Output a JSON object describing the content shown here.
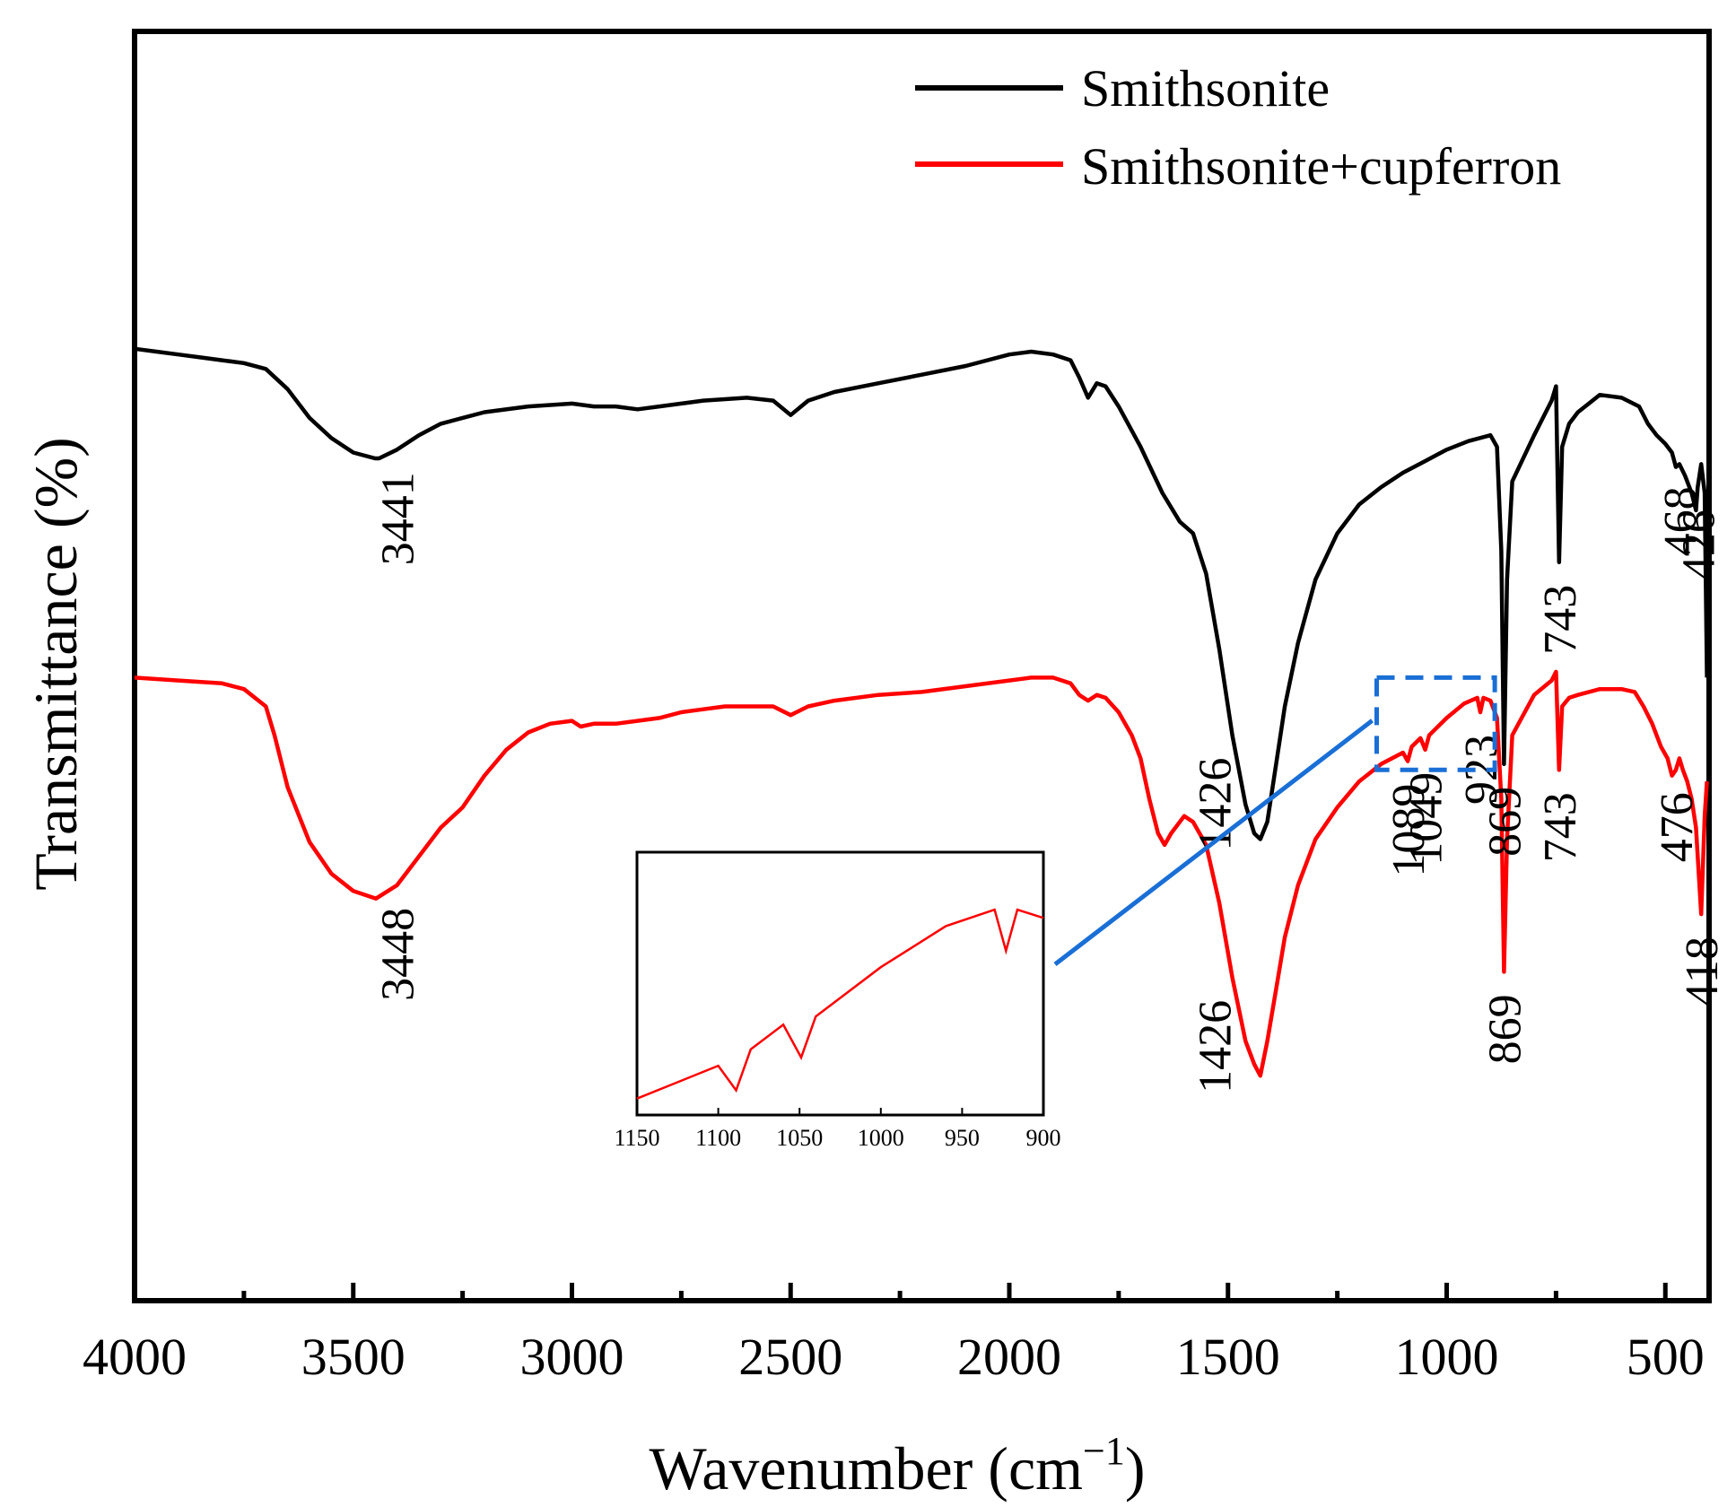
{
  "chart_data": {
    "type": "line",
    "title": "",
    "xlabel": "Wavenumber (cm",
    "xlabel_sup": "−1",
    "xlabel_close": ")",
    "ylabel": "Transmittance (%)",
    "xlim": [
      4000,
      400
    ],
    "x_reversed": true,
    "y_ticks_shown": false,
    "grid": false,
    "legend_position": "top-right",
    "x_ticks": [
      "4000",
      "3500",
      "3000",
      "2500",
      "2000",
      "1500",
      "1000",
      "500"
    ],
    "x_tick_values": [
      4000,
      3500,
      3000,
      2500,
      2000,
      1500,
      1000,
      500
    ],
    "colors": {
      "smithsonite": "#000000",
      "cupferron": "#ff0000",
      "zoom": "#1a6fd6"
    },
    "series": [
      {
        "name": "Smithsonite",
        "color": "#000000",
        "points": [
          [
            4000,
            95
          ],
          [
            3950,
            94.5
          ],
          [
            3900,
            94
          ],
          [
            3850,
            93.5
          ],
          [
            3800,
            93
          ],
          [
            3750,
            92.5
          ],
          [
            3700,
            91.5
          ],
          [
            3650,
            88
          ],
          [
            3600,
            83
          ],
          [
            3550,
            79.5
          ],
          [
            3500,
            77
          ],
          [
            3450,
            76
          ],
          [
            3441,
            76
          ],
          [
            3400,
            77.5
          ],
          [
            3350,
            80
          ],
          [
            3300,
            82
          ],
          [
            3250,
            83
          ],
          [
            3200,
            84
          ],
          [
            3100,
            85
          ],
          [
            3000,
            85.5
          ],
          [
            2950,
            85
          ],
          [
            2900,
            85
          ],
          [
            2850,
            84.5
          ],
          [
            2800,
            85
          ],
          [
            2750,
            85.5
          ],
          [
            2700,
            86
          ],
          [
            2600,
            86.5
          ],
          [
            2540,
            86
          ],
          [
            2500,
            83.5
          ],
          [
            2460,
            86
          ],
          [
            2400,
            87.5
          ],
          [
            2300,
            89
          ],
          [
            2200,
            90.5
          ],
          [
            2100,
            92
          ],
          [
            2000,
            94
          ],
          [
            1950,
            94.5
          ],
          [
            1900,
            94
          ],
          [
            1860,
            93
          ],
          [
            1840,
            90
          ],
          [
            1820,
            86.5
          ],
          [
            1800,
            89
          ],
          [
            1780,
            88.5
          ],
          [
            1750,
            85
          ],
          [
            1700,
            78
          ],
          [
            1650,
            70
          ],
          [
            1610,
            65
          ],
          [
            1580,
            63
          ],
          [
            1550,
            56
          ],
          [
            1520,
            43
          ],
          [
            1490,
            28
          ],
          [
            1460,
            16
          ],
          [
            1440,
            11
          ],
          [
            1426,
            10
          ],
          [
            1410,
            13
          ],
          [
            1390,
            23
          ],
          [
            1370,
            33
          ],
          [
            1340,
            44
          ],
          [
            1300,
            55
          ],
          [
            1250,
            63
          ],
          [
            1200,
            68
          ],
          [
            1150,
            71
          ],
          [
            1100,
            73.5
          ],
          [
            1050,
            75.5
          ],
          [
            1000,
            77.5
          ],
          [
            950,
            79
          ],
          [
            900,
            80
          ],
          [
            885,
            78
          ],
          [
            875,
            60
          ],
          [
            869,
            23
          ],
          [
            862,
            55
          ],
          [
            850,
            72
          ],
          [
            800,
            80
          ],
          [
            760,
            86
          ],
          [
            750,
            88.5
          ],
          [
            743,
            58
          ],
          [
            736,
            78
          ],
          [
            720,
            82
          ],
          [
            700,
            84
          ],
          [
            650,
            87
          ],
          [
            600,
            86.5
          ],
          [
            560,
            85
          ],
          [
            540,
            82
          ],
          [
            520,
            80
          ],
          [
            500,
            78.5
          ],
          [
            485,
            77
          ],
          [
            476,
            74.5
          ],
          [
            468,
            75
          ],
          [
            455,
            73
          ],
          [
            440,
            70
          ],
          [
            430,
            67
          ],
          [
            426,
            71
          ],
          [
            418,
            75
          ],
          [
            410,
            70
          ],
          [
            405,
            38
          ]
        ]
      },
      {
        "name": "Smithsonite+cupferron",
        "color": "#ff0000",
        "points": [
          [
            4000,
            38
          ],
          [
            3900,
            37.5
          ],
          [
            3800,
            37
          ],
          [
            3750,
            36
          ],
          [
            3700,
            33
          ],
          [
            3680,
            28
          ],
          [
            3650,
            19
          ],
          [
            3600,
            9.5
          ],
          [
            3550,
            4
          ],
          [
            3500,
            1
          ],
          [
            3448,
            -0.3
          ],
          [
            3400,
            2
          ],
          [
            3350,
            7
          ],
          [
            3300,
            12
          ],
          [
            3250,
            15.5
          ],
          [
            3200,
            21
          ],
          [
            3150,
            25.5
          ],
          [
            3100,
            28.5
          ],
          [
            3050,
            30
          ],
          [
            3000,
            30.5
          ],
          [
            2980,
            29.5
          ],
          [
            2950,
            30
          ],
          [
            2900,
            30
          ],
          [
            2850,
            30.5
          ],
          [
            2800,
            31
          ],
          [
            2750,
            32
          ],
          [
            2700,
            32.5
          ],
          [
            2650,
            33
          ],
          [
            2600,
            33
          ],
          [
            2540,
            33
          ],
          [
            2500,
            31.5
          ],
          [
            2460,
            33
          ],
          [
            2400,
            34
          ],
          [
            2300,
            35
          ],
          [
            2200,
            35.5
          ],
          [
            2100,
            36.5
          ],
          [
            2000,
            37.5
          ],
          [
            1950,
            38
          ],
          [
            1900,
            38
          ],
          [
            1860,
            37
          ],
          [
            1840,
            35
          ],
          [
            1820,
            34
          ],
          [
            1800,
            35
          ],
          [
            1780,
            34.5
          ],
          [
            1750,
            32
          ],
          [
            1720,
            28
          ],
          [
            1700,
            24
          ],
          [
            1680,
            17
          ],
          [
            1660,
            11
          ],
          [
            1645,
            9
          ],
          [
            1630,
            11
          ],
          [
            1600,
            14
          ],
          [
            1580,
            13
          ],
          [
            1550,
            9
          ],
          [
            1520,
            -1
          ],
          [
            1490,
            -14
          ],
          [
            1460,
            -25
          ],
          [
            1440,
            -29
          ],
          [
            1426,
            -31
          ],
          [
            1410,
            -25
          ],
          [
            1390,
            -16
          ],
          [
            1370,
            -7
          ],
          [
            1340,
            2
          ],
          [
            1300,
            10
          ],
          [
            1250,
            15.5
          ],
          [
            1200,
            20
          ],
          [
            1150,
            23
          ],
          [
            1100,
            25
          ],
          [
            1089,
            23.5
          ],
          [
            1080,
            26
          ],
          [
            1060,
            27.5
          ],
          [
            1049,
            25.5
          ],
          [
            1040,
            28
          ],
          [
            1000,
            31
          ],
          [
            960,
            33.5
          ],
          [
            930,
            34.5
          ],
          [
            923,
            32
          ],
          [
            916,
            34.5
          ],
          [
            900,
            34
          ],
          [
            885,
            31
          ],
          [
            875,
            17
          ],
          [
            869,
            -13
          ],
          [
            862,
            10
          ],
          [
            850,
            28
          ],
          [
            800,
            35
          ],
          [
            760,
            37.5
          ],
          [
            750,
            39
          ],
          [
            743,
            22
          ],
          [
            736,
            33
          ],
          [
            720,
            34.5
          ],
          [
            700,
            35
          ],
          [
            650,
            36
          ],
          [
            600,
            36
          ],
          [
            570,
            35.5
          ],
          [
            550,
            33
          ],
          [
            530,
            30
          ],
          [
            510,
            26
          ],
          [
            495,
            24
          ],
          [
            485,
            21
          ],
          [
            476,
            22
          ],
          [
            468,
            24
          ],
          [
            460,
            22
          ],
          [
            450,
            20
          ],
          [
            440,
            17
          ],
          [
            430,
            12
          ],
          [
            418,
            -3
          ],
          [
            410,
            14
          ],
          [
            405,
            20
          ]
        ]
      }
    ],
    "y_domain": [
      -70,
      150
    ],
    "annotations": [
      {
        "text": "3441",
        "x": 3400,
        "series": "Smithsonite"
      },
      {
        "text": "1426",
        "x": 1490,
        "series": "Smithsonite"
      },
      {
        "text": "869",
        "x": 869,
        "series": "Smithsonite"
      },
      {
        "text": "743",
        "x": 743,
        "series": "Smithsonite"
      },
      {
        "text": "468",
        "x": 468,
        "series": "Smithsonite"
      },
      {
        "text": "426",
        "x": 426,
        "series": "Smithsonite"
      },
      {
        "text": "3448",
        "x": 3400,
        "series": "Smithsonite+cupferron"
      },
      {
        "text": "1426",
        "x": 1490,
        "series": "Smithsonite+cupferron"
      },
      {
        "text": "1089",
        "x": 1089,
        "series": "Smithsonite+cupferron"
      },
      {
        "text": "1049",
        "x": 1049,
        "series": "Smithsonite+cupferron"
      },
      {
        "text": "923",
        "x": 923,
        "series": "Smithsonite+cupferron"
      },
      {
        "text": "869",
        "x": 869,
        "series": "Smithsonite+cupferron"
      },
      {
        "text": "743",
        "x": 743,
        "series": "Smithsonite+cupferron"
      },
      {
        "text": "476",
        "x": 476,
        "series": "Smithsonite+cupferron"
      },
      {
        "text": "418",
        "x": 418,
        "series": "Smithsonite+cupferron"
      }
    ],
    "inset": {
      "xlim": [
        1150,
        900
      ],
      "x_ticks": [
        "1150",
        "1100",
        "1050",
        "1000",
        "950",
        "900"
      ],
      "x_tick_values": [
        1150,
        1100,
        1050,
        1000,
        950,
        900
      ],
      "series": "Smithsonite+cupferron",
      "zoom_region": {
        "x": [
          1160,
          890
        ],
        "y": [
          22,
          38
        ]
      }
    }
  }
}
